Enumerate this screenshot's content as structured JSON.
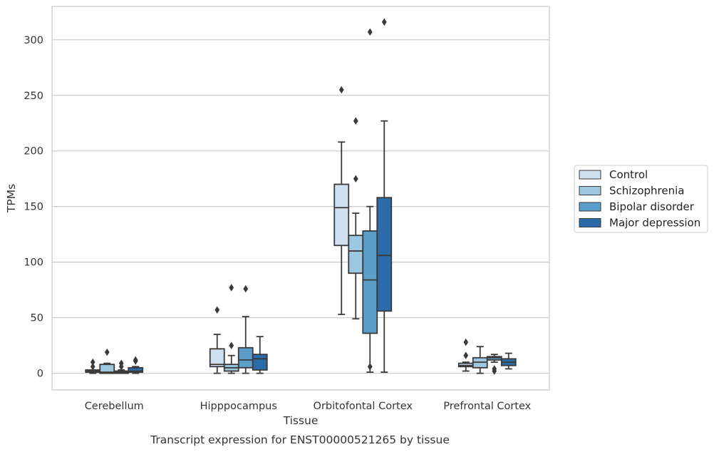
{
  "chart_data": {
    "type": "box",
    "xlabel": "Tissue",
    "ylabel": "TPMs",
    "caption": "Transcript expression for ENST00000521265 by tissue",
    "ylim": [
      -15,
      330
    ],
    "yticks": [
      0,
      50,
      100,
      150,
      200,
      250,
      300
    ],
    "grid": "horizontal",
    "legend_position": "right",
    "categories": [
      "Cerebellum",
      "Hipppocampus",
      "Orbitofontal Cortex",
      "Prefrontal Cortex"
    ],
    "series": [
      {
        "name": "Control",
        "color": "#cfe0f1",
        "boxes": [
          {
            "whislo": 0,
            "q1": 1,
            "med": 2,
            "q3": 3,
            "whishi": 3,
            "fliers": [
              6,
              10
            ]
          },
          {
            "whislo": 0,
            "q1": 6,
            "med": 8,
            "q3": 22,
            "whishi": 35,
            "fliers": [
              57
            ]
          },
          {
            "whislo": 53,
            "q1": 115,
            "med": 149,
            "q3": 170,
            "whishi": 208,
            "fliers": [
              255
            ]
          },
          {
            "whislo": 2,
            "q1": 6,
            "med": 7,
            "q3": 9,
            "whishi": 10,
            "fliers": [
              16,
              28
            ]
          }
        ]
      },
      {
        "name": "Schizophrenia",
        "color": "#9dc8e0",
        "boxes": [
          {
            "whislo": 0,
            "q1": 0,
            "med": 1,
            "q3": 8,
            "whishi": 9,
            "fliers": [
              19
            ]
          },
          {
            "whislo": 0,
            "q1": 2,
            "med": 5,
            "q3": 8,
            "whishi": 16,
            "fliers": [
              25,
              77
            ]
          },
          {
            "whislo": 49,
            "q1": 90,
            "med": 110,
            "q3": 124,
            "whishi": 144,
            "fliers": [
              175,
              227
            ]
          },
          {
            "whislo": 0,
            "q1": 5,
            "med": 10,
            "q3": 14,
            "whishi": 24,
            "fliers": []
          }
        ]
      },
      {
        "name": "Bipolar disorder",
        "color": "#5b9ec9",
        "boxes": [
          {
            "whislo": 0,
            "q1": 0,
            "med": 1,
            "q3": 2,
            "whishi": 3,
            "fliers": [
              6,
              9
            ]
          },
          {
            "whislo": 0,
            "q1": 5,
            "med": 12,
            "q3": 23,
            "whishi": 51,
            "fliers": [
              76
            ]
          },
          {
            "whislo": 1,
            "q1": 36,
            "med": 84,
            "q3": 128,
            "whishi": 150,
            "fliers": [
              6,
              307
            ]
          },
          {
            "whislo": 10,
            "q1": 12,
            "med": 14,
            "q3": 15,
            "whishi": 17,
            "fliers": [
              2,
              4
            ]
          }
        ]
      },
      {
        "name": "Major depression",
        "color": "#2b6ca8",
        "boxes": [
          {
            "whislo": 0,
            "q1": 1,
            "med": 2,
            "q3": 5,
            "whishi": 6,
            "fliers": [
              11,
              12
            ]
          },
          {
            "whislo": 0,
            "q1": 3,
            "med": 13,
            "q3": 17,
            "whishi": 33,
            "fliers": []
          },
          {
            "whislo": 1,
            "q1": 56,
            "med": 106,
            "q3": 158,
            "whishi": 227,
            "fliers": [
              316
            ]
          },
          {
            "whislo": 4,
            "q1": 7,
            "med": 10,
            "q3": 13,
            "whishi": 18,
            "fliers": []
          }
        ]
      }
    ]
  }
}
